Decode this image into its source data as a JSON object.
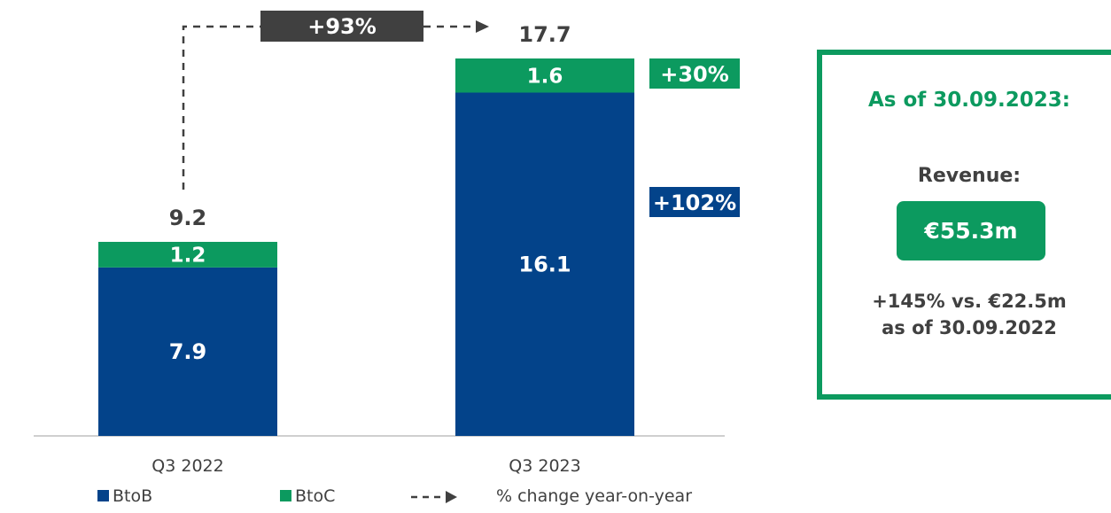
{
  "colors": {
    "btob": "#03438a",
    "btoc": "#0c9a5f",
    "text": "#404040",
    "highlight_dark": "#404040",
    "axis": "#bfbfbf"
  },
  "chart_data": {
    "type": "bar",
    "stacked": true,
    "categories": [
      "Q3 2022",
      "Q3 2023"
    ],
    "series": [
      {
        "name": "BtoB",
        "values": [
          7.9,
          16.1
        ]
      },
      {
        "name": "BtoC",
        "values": [
          1.2,
          1.6
        ]
      }
    ],
    "totals": [
      "9.2",
      "17.7"
    ],
    "segment_labels": {
      "BtoB": [
        "7.9",
        "16.1"
      ],
      "BtoC": [
        "1.2",
        "1.6"
      ]
    },
    "ylim": [
      0,
      20
    ],
    "grid": false,
    "growth_badges": {
      "total": "+93%",
      "btoc": "+30%",
      "btob": "+102%"
    },
    "legend": {
      "items": [
        {
          "label": "BtoB",
          "series": "BtoB"
        },
        {
          "label": "BtoC",
          "series": "BtoC"
        },
        {
          "label": "% change year-on-year",
          "series": "change"
        }
      ],
      "position": "bottom"
    }
  },
  "info": {
    "heading": "As of 30.09.2023:",
    "revenue_label": "Revenue:",
    "revenue_value": "€55.3m",
    "comparison_line1": "+145% vs. €22.5m",
    "comparison_line2": "as of 30.09.2022"
  }
}
